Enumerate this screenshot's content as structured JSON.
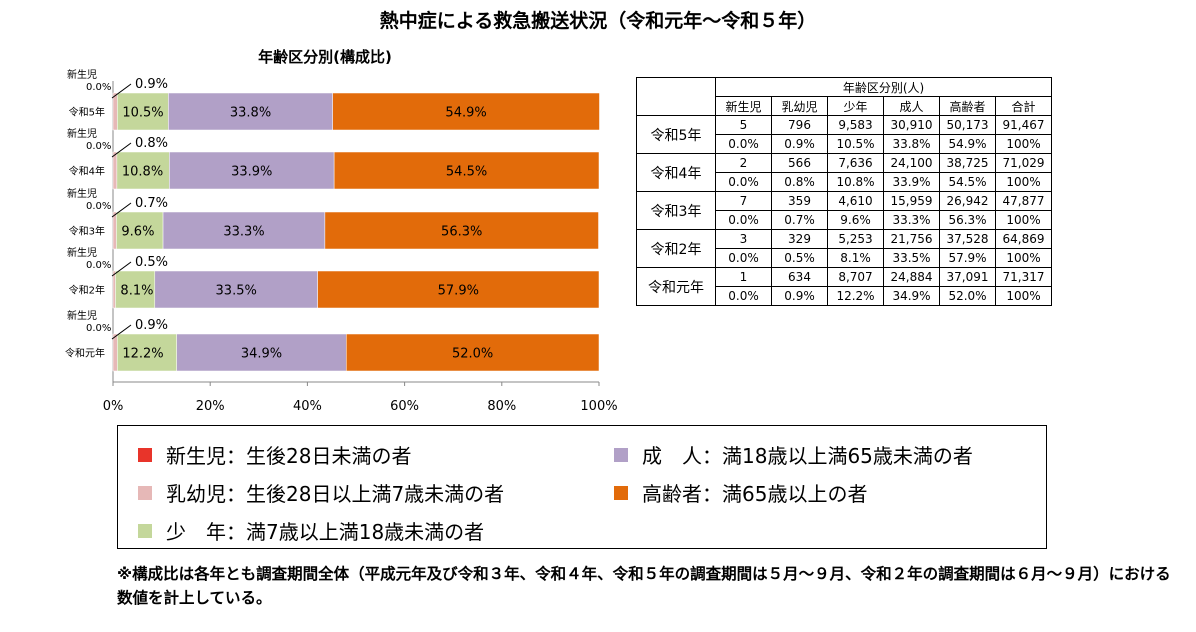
{
  "title": "熱中症による救急搬送状況（令和元年〜令和５年）",
  "chart_data": {
    "type": "bar",
    "orientation": "horizontal",
    "stacked": true,
    "percent": true,
    "title": "年齢区分別(構成比)",
    "categories": [
      "令和5年",
      "令和4年",
      "令和3年",
      "令和2年",
      "令和元年"
    ],
    "category_top_label": "新生児",
    "series": [
      {
        "name": "新生児",
        "values": [
          0.0,
          0.0,
          0.0,
          0.0,
          0.0
        ],
        "labels": [
          "0.0%",
          "0.0%",
          "0.0%",
          "0.0%",
          "0.0%"
        ],
        "color": "#e8342a"
      },
      {
        "name": "乳幼児",
        "values": [
          0.9,
          0.8,
          0.7,
          0.5,
          0.9
        ],
        "labels": [
          "0.9%",
          "0.8%",
          "0.7%",
          "0.5%",
          "0.9%"
        ],
        "color": "#e6b8b7"
      },
      {
        "name": "少年",
        "values": [
          10.5,
          10.8,
          9.6,
          8.1,
          12.2
        ],
        "labels": [
          "10.5%",
          "10.8%",
          "9.6%",
          "8.1%",
          "12.2%"
        ],
        "color": "#c4d79b"
      },
      {
        "name": "成人",
        "values": [
          33.8,
          33.9,
          33.3,
          33.5,
          34.9
        ],
        "labels": [
          "33.8%",
          "33.9%",
          "33.3%",
          "33.5%",
          "34.9%"
        ],
        "color": "#b1a0c7"
      },
      {
        "name": "高齢者",
        "values": [
          54.9,
          54.5,
          56.3,
          57.9,
          52.0
        ],
        "labels": [
          "54.9%",
          "54.5%",
          "56.3%",
          "57.9%",
          "52.0%"
        ],
        "color": "#e26b0a"
      }
    ],
    "xlim": [
      0,
      100
    ],
    "xticks": [
      "0%",
      "20%",
      "40%",
      "60%",
      "80%",
      "100%"
    ],
    "grid": false,
    "legend_position": "bottom"
  },
  "table": {
    "group_header": "年齢区分別(人)",
    "columns": [
      "新生児",
      "乳幼児",
      "少年",
      "成人",
      "高齢者",
      "合計"
    ],
    "rows": [
      {
        "year": "令和5年",
        "counts": [
          "5",
          "796",
          "9,583",
          "30,910",
          "50,173",
          "91,467"
        ],
        "pcts": [
          "0.0%",
          "0.9%",
          "10.5%",
          "33.8%",
          "54.9%",
          "100%"
        ]
      },
      {
        "year": "令和4年",
        "counts": [
          "2",
          "566",
          "7,636",
          "24,100",
          "38,725",
          "71,029"
        ],
        "pcts": [
          "0.0%",
          "0.8%",
          "10.8%",
          "33.9%",
          "54.5%",
          "100%"
        ]
      },
      {
        "year": "令和3年",
        "counts": [
          "7",
          "359",
          "4,610",
          "15,959",
          "26,942",
          "47,877"
        ],
        "pcts": [
          "0.0%",
          "0.7%",
          "9.6%",
          "33.3%",
          "56.3%",
          "100%"
        ]
      },
      {
        "year": "令和2年",
        "counts": [
          "3",
          "329",
          "5,253",
          "21,756",
          "37,528",
          "64,869"
        ],
        "pcts": [
          "0.0%",
          "0.5%",
          "8.1%",
          "33.5%",
          "57.9%",
          "100%"
        ]
      },
      {
        "year": "令和元年",
        "counts": [
          "1",
          "634",
          "8,707",
          "24,884",
          "37,091",
          "71,317"
        ],
        "pcts": [
          "0.0%",
          "0.9%",
          "12.2%",
          "34.9%",
          "52.0%",
          "100%"
        ]
      }
    ]
  },
  "legend": [
    {
      "label": "新生児：生後28日未満の者",
      "color": "#e8342a"
    },
    {
      "label": "乳幼児：生後28日以上満7歳未満の者",
      "color": "#e6b8b7"
    },
    {
      "label": "少　年：満7歳以上満18歳未満の者",
      "color": "#c4d79b"
    },
    {
      "label": "成　人：満18歳以上満65歳未満の者",
      "color": "#b1a0c7"
    },
    {
      "label": "高齢者：満65歳以上の者",
      "color": "#e26b0a"
    }
  ],
  "footnote": "※構成比は各年とも調査期間全体（平成元年及び令和３年、令和４年、令和５年の調査期間は５月〜９月、令和２年の調査期間は６月〜９月）における数値を計上している。"
}
